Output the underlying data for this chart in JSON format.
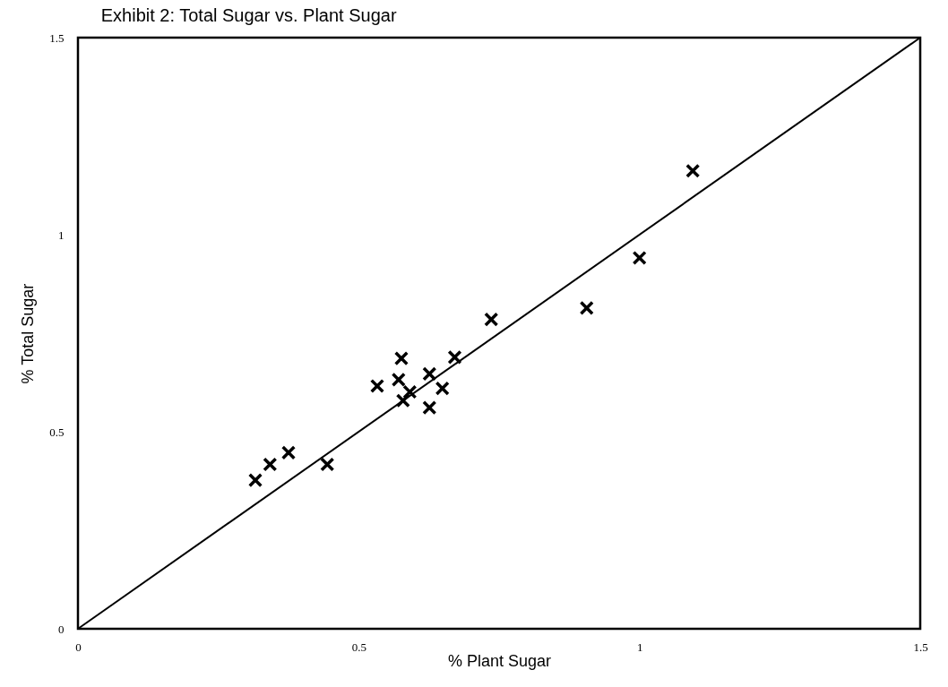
{
  "chart_data": {
    "type": "scatter",
    "title": "Exhibit 2: Total Sugar vs. Plant Sugar",
    "xlabel": "% Plant Sugar",
    "ylabel": "% Total Sugar",
    "xlim": [
      0,
      1.5
    ],
    "ylim": [
      0,
      1.5
    ],
    "xticks": [
      0,
      0.5,
      1,
      1.5
    ],
    "yticks": [
      0,
      0.5,
      1,
      1.5
    ],
    "grid": false,
    "marker": "cross",
    "series": [
      {
        "color": "#000000",
        "x": [
          0.316,
          0.342,
          0.375,
          0.444,
          0.533,
          0.576,
          0.571,
          0.591,
          0.579,
          0.626,
          0.649,
          0.626,
          0.671,
          0.736,
          0.906,
          1.0,
          1.095
        ],
        "values": [
          0.377,
          0.417,
          0.447,
          0.417,
          0.616,
          0.686,
          0.632,
          0.601,
          0.579,
          0.647,
          0.61,
          0.561,
          0.689,
          0.785,
          0.814,
          0.941,
          1.162
        ]
      },
      {
        "type": "line",
        "marker": "none",
        "line_style": "solid",
        "color": "#000000",
        "x": [
          0,
          1.5
        ],
        "values": [
          0,
          1.5
        ]
      }
    ]
  }
}
